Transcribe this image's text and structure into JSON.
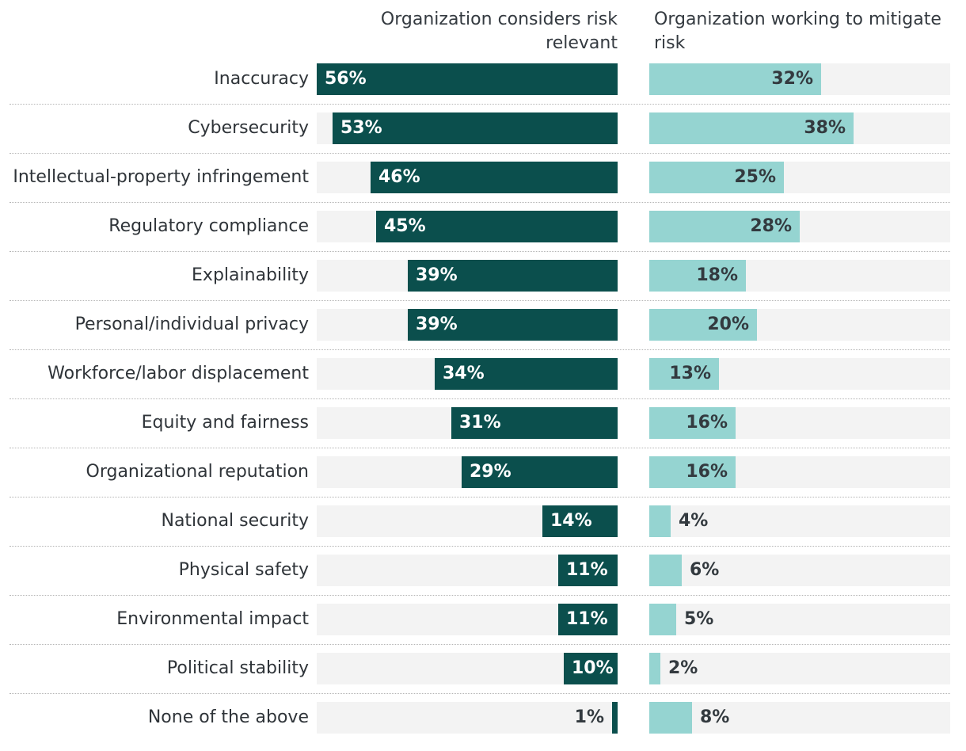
{
  "chart_data": {
    "type": "bar",
    "orientation": "horizontal",
    "series": [
      {
        "name": "Organization considers risk relevant",
        "values": [
          56,
          53,
          46,
          45,
          39,
          39,
          34,
          31,
          29,
          14,
          11,
          11,
          10,
          1
        ],
        "color": "#0b4f4d"
      },
      {
        "name": "Organization working to mitigate risk",
        "values": [
          32,
          38,
          25,
          28,
          18,
          20,
          13,
          16,
          16,
          4,
          6,
          5,
          2,
          8
        ],
        "color": "#95d4d1"
      }
    ],
    "categories": [
      "Inaccuracy",
      "Cybersecurity",
      "Intellectual-property infringement",
      "Regulatory compliance",
      "Explainability",
      "Personal/individual privacy",
      "Workforce/labor displacement",
      "Equity and fairness",
      "Organizational reputation",
      "National security",
      "Physical safety",
      "Environmental impact",
      "Political stability",
      "None of the above"
    ],
    "value_suffix": "%",
    "xlim": [
      0,
      56
    ],
    "track_color": "#f3f3f3"
  }
}
